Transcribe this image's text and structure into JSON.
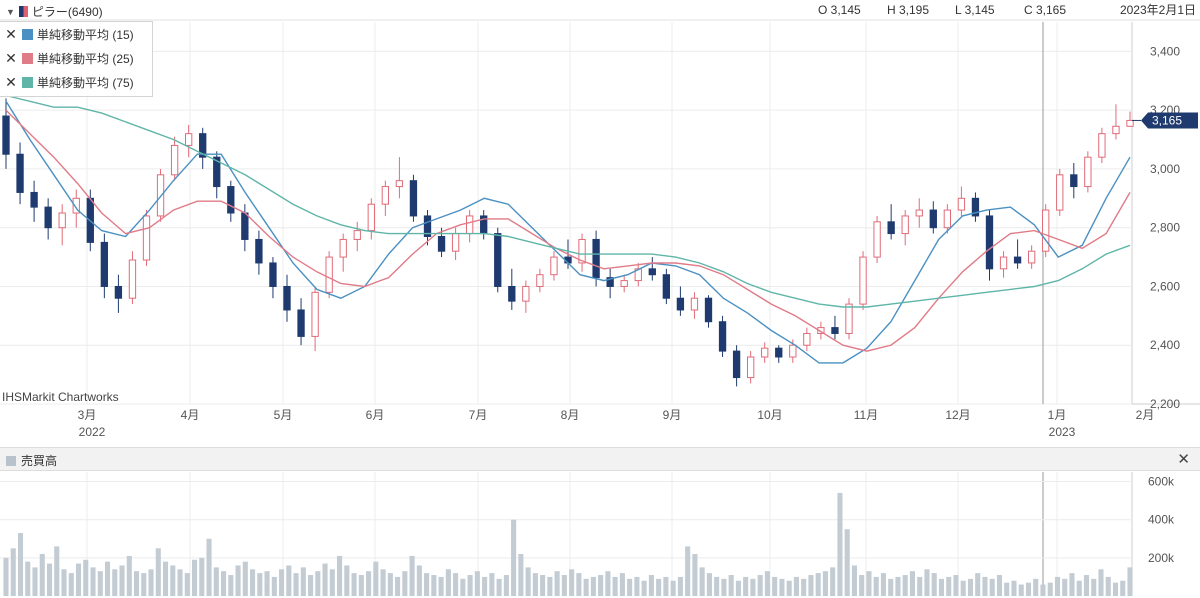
{
  "header": {
    "symbol": "ピラー(6490)",
    "open": "O 3,145",
    "high": "H 3,195",
    "low": "L 3,145",
    "close": "C 3,165",
    "date": "2023年2月1日"
  },
  "legend": [
    {
      "label": "単純移動平均 (15)",
      "color": "#4a90c2"
    },
    {
      "label": "単純移動平均 (25)",
      "color": "#e07b88"
    },
    {
      "label": "単純移動平均 (75)",
      "color": "#5fb5a8"
    }
  ],
  "credit": "IHSMarkit Chartworks",
  "volume_panel": {
    "title": "売買高",
    "close_icon": "close-icon"
  },
  "colors": {
    "up": "#e06b78",
    "down": "#1f3a6e",
    "volume": "#c3cbd3",
    "price_tag": "#1f3a6e"
  },
  "chart_data": [
    {
      "type": "candlestick",
      "title": "",
      "ylim": [
        2200,
        3500
      ],
      "y_ticks": [
        "3,400",
        "3,200",
        "3,000",
        "2,800",
        "2,600",
        "2,400",
        "2,200"
      ],
      "y_tick_values": [
        3400,
        3200,
        3000,
        2800,
        2600,
        2400,
        2200
      ],
      "x_ticks": [
        {
          "label": "3月",
          "sub": "2022"
        },
        {
          "label": "4月",
          "sub": ""
        },
        {
          "label": "5月",
          "sub": ""
        },
        {
          "label": "6月",
          "sub": ""
        },
        {
          "label": "7月",
          "sub": ""
        },
        {
          "label": "8月",
          "sub": ""
        },
        {
          "label": "9月",
          "sub": ""
        },
        {
          "label": "10月",
          "sub": ""
        },
        {
          "label": "11月",
          "sub": ""
        },
        {
          "label": "12月",
          "sub": ""
        },
        {
          "label": "1月",
          "sub": "2023"
        },
        {
          "label": "2月",
          "sub": ""
        }
      ],
      "last_price_label": "3,165",
      "last_price": 3165,
      "grid": true,
      "ma_series": [
        {
          "name": "単純移動平均 (15)",
          "color": "#4a90c2",
          "values": [
            3230,
            3100,
            2980,
            2860,
            2790,
            2770,
            2860,
            2960,
            3050,
            3050,
            2920,
            2800,
            2680,
            2590,
            2560,
            2600,
            2710,
            2800,
            2830,
            2860,
            2900,
            2880,
            2800,
            2720,
            2640,
            2620,
            2640,
            2680,
            2670,
            2640,
            2560,
            2510,
            2450,
            2400,
            2340,
            2340,
            2390,
            2480,
            2620,
            2760,
            2840,
            2860,
            2870,
            2810,
            2700,
            2740,
            2900,
            3040
          ]
        },
        {
          "name": "単純移動平均 (25)",
          "color": "#e07b88",
          "values": [
            3200,
            3120,
            3040,
            2950,
            2850,
            2780,
            2800,
            2860,
            2890,
            2890,
            2850,
            2770,
            2700,
            2650,
            2610,
            2600,
            2630,
            2710,
            2780,
            2810,
            2830,
            2830,
            2780,
            2730,
            2690,
            2660,
            2670,
            2680,
            2680,
            2670,
            2640,
            2590,
            2540,
            2500,
            2450,
            2400,
            2380,
            2400,
            2460,
            2560,
            2650,
            2720,
            2780,
            2790,
            2760,
            2730,
            2780,
            2920
          ]
        },
        {
          "name": "単純移動平均 (75)",
          "color": "#5fb5a8",
          "values": [
            3250,
            3230,
            3210,
            3210,
            3190,
            3160,
            3130,
            3100,
            3060,
            3020,
            2980,
            2930,
            2880,
            2840,
            2810,
            2790,
            2780,
            2780,
            2780,
            2780,
            2780,
            2770,
            2750,
            2730,
            2710,
            2710,
            2710,
            2710,
            2700,
            2680,
            2650,
            2610,
            2580,
            2560,
            2540,
            2530,
            2530,
            2540,
            2550,
            2560,
            2570,
            2580,
            2590,
            2600,
            2620,
            2660,
            2710,
            2740
          ]
        }
      ],
      "candles": [
        {
          "o": 3180,
          "h": 3240,
          "l": 3000,
          "c": 3050
        },
        {
          "o": 3050,
          "h": 3090,
          "l": 2880,
          "c": 2920
        },
        {
          "o": 2920,
          "h": 2960,
          "l": 2820,
          "c": 2870
        },
        {
          "o": 2870,
          "h": 2900,
          "l": 2760,
          "c": 2800
        },
        {
          "o": 2800,
          "h": 2880,
          "l": 2740,
          "c": 2850
        },
        {
          "o": 2850,
          "h": 2930,
          "l": 2800,
          "c": 2900
        },
        {
          "o": 2900,
          "h": 2930,
          "l": 2720,
          "c": 2750
        },
        {
          "o": 2750,
          "h": 2780,
          "l": 2560,
          "c": 2600
        },
        {
          "o": 2600,
          "h": 2640,
          "l": 2510,
          "c": 2560
        },
        {
          "o": 2560,
          "h": 2720,
          "l": 2540,
          "c": 2690
        },
        {
          "o": 2690,
          "h": 2860,
          "l": 2670,
          "c": 2840
        },
        {
          "o": 2840,
          "h": 3000,
          "l": 2820,
          "c": 2980
        },
        {
          "o": 2980,
          "h": 3110,
          "l": 2960,
          "c": 3080
        },
        {
          "o": 3080,
          "h": 3150,
          "l": 3040,
          "c": 3120
        },
        {
          "o": 3120,
          "h": 3140,
          "l": 3000,
          "c": 3040
        },
        {
          "o": 3040,
          "h": 3060,
          "l": 2900,
          "c": 2940
        },
        {
          "o": 2940,
          "h": 2960,
          "l": 2820,
          "c": 2850
        },
        {
          "o": 2850,
          "h": 2880,
          "l": 2720,
          "c": 2760
        },
        {
          "o": 2760,
          "h": 2790,
          "l": 2640,
          "c": 2680
        },
        {
          "o": 2680,
          "h": 2700,
          "l": 2560,
          "c": 2600
        },
        {
          "o": 2600,
          "h": 2640,
          "l": 2480,
          "c": 2520
        },
        {
          "o": 2520,
          "h": 2560,
          "l": 2400,
          "c": 2430
        },
        {
          "o": 2430,
          "h": 2600,
          "l": 2380,
          "c": 2580
        },
        {
          "o": 2580,
          "h": 2720,
          "l": 2560,
          "c": 2700
        },
        {
          "o": 2700,
          "h": 2780,
          "l": 2650,
          "c": 2760
        },
        {
          "o": 2760,
          "h": 2820,
          "l": 2720,
          "c": 2790
        },
        {
          "o": 2790,
          "h": 2900,
          "l": 2760,
          "c": 2880
        },
        {
          "o": 2880,
          "h": 2960,
          "l": 2840,
          "c": 2940
        },
        {
          "o": 2940,
          "h": 3040,
          "l": 2900,
          "c": 2960
        },
        {
          "o": 2960,
          "h": 2980,
          "l": 2820,
          "c": 2840
        },
        {
          "o": 2840,
          "h": 2860,
          "l": 2740,
          "c": 2770
        },
        {
          "o": 2770,
          "h": 2800,
          "l": 2700,
          "c": 2720
        },
        {
          "o": 2720,
          "h": 2800,
          "l": 2690,
          "c": 2780
        },
        {
          "o": 2780,
          "h": 2860,
          "l": 2750,
          "c": 2840
        },
        {
          "o": 2840,
          "h": 2860,
          "l": 2760,
          "c": 2780
        },
        {
          "o": 2780,
          "h": 2800,
          "l": 2580,
          "c": 2600
        },
        {
          "o": 2600,
          "h": 2660,
          "l": 2520,
          "c": 2550
        },
        {
          "o": 2550,
          "h": 2620,
          "l": 2510,
          "c": 2600
        },
        {
          "o": 2600,
          "h": 2660,
          "l": 2580,
          "c": 2640
        },
        {
          "o": 2640,
          "h": 2720,
          "l": 2620,
          "c": 2700
        },
        {
          "o": 2700,
          "h": 2760,
          "l": 2660,
          "c": 2680
        },
        {
          "o": 2680,
          "h": 2780,
          "l": 2650,
          "c": 2760
        },
        {
          "o": 2760,
          "h": 2790,
          "l": 2600,
          "c": 2630
        },
        {
          "o": 2630,
          "h": 2660,
          "l": 2560,
          "c": 2600
        },
        {
          "o": 2600,
          "h": 2640,
          "l": 2580,
          "c": 2620
        },
        {
          "o": 2620,
          "h": 2680,
          "l": 2600,
          "c": 2660
        },
        {
          "o": 2660,
          "h": 2700,
          "l": 2620,
          "c": 2640
        },
        {
          "o": 2640,
          "h": 2660,
          "l": 2540,
          "c": 2560
        },
        {
          "o": 2560,
          "h": 2600,
          "l": 2500,
          "c": 2520
        },
        {
          "o": 2520,
          "h": 2580,
          "l": 2490,
          "c": 2560
        },
        {
          "o": 2560,
          "h": 2570,
          "l": 2460,
          "c": 2480
        },
        {
          "o": 2480,
          "h": 2500,
          "l": 2360,
          "c": 2380
        },
        {
          "o": 2380,
          "h": 2400,
          "l": 2260,
          "c": 2290
        },
        {
          "o": 2290,
          "h": 2380,
          "l": 2270,
          "c": 2360
        },
        {
          "o": 2360,
          "h": 2410,
          "l": 2340,
          "c": 2390
        },
        {
          "o": 2390,
          "h": 2400,
          "l": 2340,
          "c": 2360
        },
        {
          "o": 2360,
          "h": 2420,
          "l": 2340,
          "c": 2400
        },
        {
          "o": 2400,
          "h": 2460,
          "l": 2380,
          "c": 2440
        },
        {
          "o": 2440,
          "h": 2480,
          "l": 2420,
          "c": 2460
        },
        {
          "o": 2460,
          "h": 2500,
          "l": 2420,
          "c": 2440
        },
        {
          "o": 2440,
          "h": 2560,
          "l": 2420,
          "c": 2540
        },
        {
          "o": 2540,
          "h": 2720,
          "l": 2520,
          "c": 2700
        },
        {
          "o": 2700,
          "h": 2840,
          "l": 2680,
          "c": 2820
        },
        {
          "o": 2820,
          "h": 2880,
          "l": 2760,
          "c": 2780
        },
        {
          "o": 2780,
          "h": 2860,
          "l": 2740,
          "c": 2840
        },
        {
          "o": 2840,
          "h": 2900,
          "l": 2800,
          "c": 2860
        },
        {
          "o": 2860,
          "h": 2890,
          "l": 2780,
          "c": 2800
        },
        {
          "o": 2800,
          "h": 2880,
          "l": 2780,
          "c": 2860
        },
        {
          "o": 2860,
          "h": 2940,
          "l": 2840,
          "c": 2900
        },
        {
          "o": 2900,
          "h": 2920,
          "l": 2820,
          "c": 2840
        },
        {
          "o": 2840,
          "h": 2860,
          "l": 2620,
          "c": 2660
        },
        {
          "o": 2660,
          "h": 2720,
          "l": 2630,
          "c": 2700
        },
        {
          "o": 2700,
          "h": 2760,
          "l": 2660,
          "c": 2680
        },
        {
          "o": 2680,
          "h": 2740,
          "l": 2660,
          "c": 2720
        },
        {
          "o": 2720,
          "h": 2880,
          "l": 2700,
          "c": 2860
        },
        {
          "o": 2860,
          "h": 3000,
          "l": 2840,
          "c": 2980
        },
        {
          "o": 2980,
          "h": 3020,
          "l": 2900,
          "c": 2940
        },
        {
          "o": 2940,
          "h": 3060,
          "l": 2920,
          "c": 3040
        },
        {
          "o": 3040,
          "h": 3140,
          "l": 3020,
          "c": 3120
        },
        {
          "o": 3120,
          "h": 3220,
          "l": 3100,
          "c": 3145
        },
        {
          "o": 3145,
          "h": 3195,
          "l": 3145,
          "c": 3165
        }
      ]
    },
    {
      "type": "bar",
      "title": "売買高",
      "ylim": [
        0,
        650000
      ],
      "y_ticks": [
        "600k",
        "400k",
        "200k"
      ],
      "y_tick_values": [
        600000,
        400000,
        200000
      ],
      "values": [
        200000,
        250000,
        330000,
        180000,
        150000,
        220000,
        170000,
        260000,
        140000,
        120000,
        170000,
        190000,
        150000,
        130000,
        180000,
        140000,
        160000,
        210000,
        130000,
        120000,
        140000,
        250000,
        180000,
        160000,
        140000,
        120000,
        190000,
        200000,
        300000,
        150000,
        130000,
        110000,
        160000,
        180000,
        140000,
        120000,
        130000,
        100000,
        140000,
        160000,
        120000,
        150000,
        110000,
        130000,
        170000,
        140000,
        210000,
        160000,
        120000,
        110000,
        130000,
        180000,
        140000,
        120000,
        100000,
        130000,
        210000,
        160000,
        120000,
        110000,
        100000,
        140000,
        120000,
        90000,
        110000,
        130000,
        100000,
        120000,
        90000,
        110000,
        400000,
        220000,
        150000,
        120000,
        110000,
        100000,
        130000,
        110000,
        140000,
        120000,
        90000,
        100000,
        110000,
        130000,
        100000,
        120000,
        90000,
        100000,
        80000,
        110000,
        90000,
        100000,
        80000,
        100000,
        260000,
        220000,
        150000,
        120000,
        100000,
        90000,
        110000,
        80000,
        100000,
        90000,
        110000,
        130000,
        100000,
        90000,
        80000,
        100000,
        90000,
        110000,
        120000,
        130000,
        150000,
        540000,
        350000,
        160000,
        110000,
        130000,
        100000,
        120000,
        90000,
        100000,
        110000,
        130000,
        100000,
        140000,
        120000,
        90000,
        100000,
        110000,
        80000,
        90000,
        120000,
        100000,
        90000,
        110000,
        70000,
        80000,
        60000,
        70000,
        90000,
        60000,
        70000,
        100000,
        90000,
        120000,
        80000,
        110000,
        90000,
        140000,
        100000,
        70000,
        80000,
        150000
      ]
    }
  ]
}
